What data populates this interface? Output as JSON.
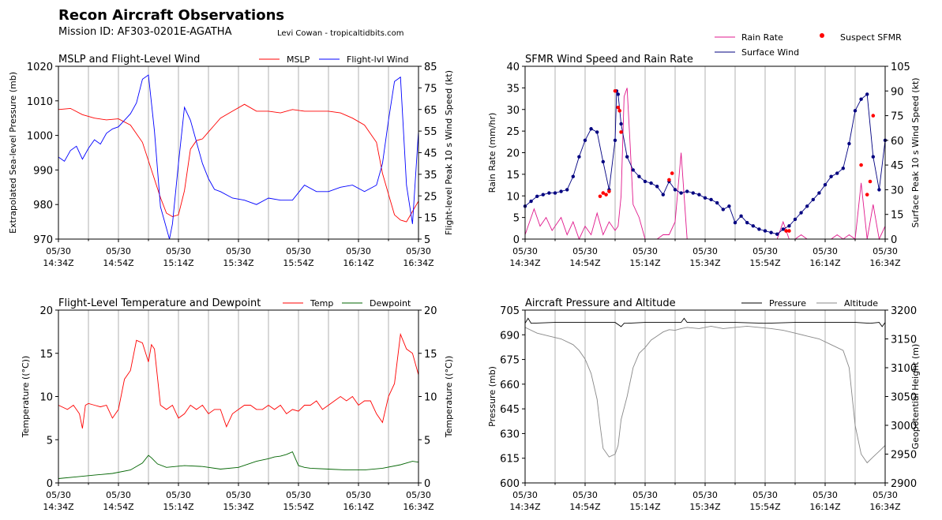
{
  "header": {
    "title": "Recon Aircraft Observations",
    "mission": "Mission ID: AF303-0201E-AGATHA",
    "credit": "Levi Cowan - tropicaltidbits.com"
  },
  "colors": {
    "mslp": "#ff0000",
    "wind": "#0000ff",
    "rain": "#e0188c",
    "sfmr": "#000080",
    "suspect": "#ff0000",
    "temp": "#ff0000",
    "dew": "#006400",
    "pressure": "#000000",
    "altitude": "#888888",
    "grid": "#aaaaaa"
  },
  "time_ticks": [
    "05/30\n14:34Z",
    "05/30\n14:54Z",
    "05/30\n15:14Z",
    "05/30\n15:34Z",
    "05/30\n15:54Z",
    "05/30\n16:14Z",
    "05/30\n16:34Z"
  ],
  "chart_data": [
    {
      "type": "line",
      "title": "MSLP and Flight-Level Wind",
      "ylabel": "Extrapolated Sea-level Pressure (mb)",
      "ylabel_right": "Flight-level Peak 10 s Wind Speed (kt)",
      "x_range_minutes": [
        0,
        120
      ],
      "ylim": [
        970,
        1020
      ],
      "yticks": [
        970,
        980,
        990,
        1000,
        1010,
        1020
      ],
      "ylim_right": [
        5,
        85
      ],
      "yticks_right": [
        5,
        15,
        25,
        35,
        45,
        55,
        65,
        75,
        85
      ],
      "legend": [
        "MSLP",
        "Flight-lvl Wind"
      ],
      "series": [
        {
          "name": "MSLP",
          "axis": "left",
          "color": "#ff0000",
          "x": [
            0,
            4,
            8,
            12,
            16,
            20,
            24,
            28,
            31,
            34,
            36,
            38,
            40,
            42,
            44,
            46,
            48,
            50,
            52,
            54,
            58,
            62,
            66,
            70,
            74,
            78,
            82,
            86,
            90,
            94,
            98,
            102,
            106,
            108,
            110,
            112,
            114,
            116,
            118,
            120
          ],
          "y": [
            1007.5,
            1007.8,
            1006,
            1005,
            1004.5,
            1004.8,
            1003,
            998,
            990,
            982,
            977.5,
            976.5,
            977,
            984,
            996,
            998.5,
            999,
            1001,
            1003,
            1005,
            1007,
            1009,
            1007,
            1007,
            1006.5,
            1007.5,
            1007,
            1007,
            1007,
            1006.5,
            1005,
            1003,
            998,
            989,
            983,
            977,
            975.5,
            975,
            978,
            981
          ]
        },
        {
          "name": "Flight-lvl Wind",
          "axis": "right",
          "color": "#0000ff",
          "x": [
            0,
            2,
            4,
            6,
            8,
            10,
            12,
            14,
            16,
            18,
            20,
            22,
            24,
            26,
            28,
            30,
            32,
            34,
            36,
            37,
            38,
            40,
            42,
            44,
            46,
            48,
            50,
            52,
            54,
            58,
            62,
            66,
            70,
            74,
            78,
            82,
            86,
            90,
            94,
            98,
            102,
            106,
            108,
            110,
            112,
            114,
            116,
            118,
            120
          ],
          "y": [
            43,
            41,
            46,
            48,
            42,
            47,
            51,
            49,
            54,
            56,
            57,
            60,
            63,
            68,
            79,
            81,
            55,
            20,
            10,
            5,
            12,
            40,
            66,
            60,
            50,
            40,
            33,
            28,
            27,
            24,
            23,
            21,
            24,
            23,
            23,
            30,
            27,
            27,
            29,
            30,
            27,
            30,
            40,
            60,
            78,
            80,
            30,
            12,
            55
          ]
        }
      ]
    },
    {
      "type": "line",
      "title": "SFMR Wind Speed and Rain Rate",
      "ylabel": "Rain Rate (mm/hr)",
      "ylabel_right": "Surface Peak 10 s Wind Speed (kt)",
      "x_range_minutes": [
        0,
        120
      ],
      "ylim": [
        0,
        40
      ],
      "yticks": [
        0,
        5,
        10,
        15,
        20,
        25,
        30,
        35,
        40
      ],
      "ylim_right": [
        0,
        105
      ],
      "yticks_right": [
        0,
        15,
        30,
        45,
        60,
        75,
        90,
        105
      ],
      "legend": [
        "Rain Rate",
        "Surface Wind",
        "Suspect SFMR"
      ],
      "series": [
        {
          "name": "Rain Rate",
          "axis": "left",
          "color": "#e0188c",
          "x": [
            0,
            3,
            5,
            7,
            9,
            12,
            14,
            16,
            18,
            20,
            22,
            24,
            26,
            28,
            30,
            31,
            32,
            33,
            34,
            35,
            36,
            38,
            40,
            42,
            44,
            46,
            48,
            50,
            52,
            54,
            56,
            58,
            60,
            62,
            64,
            66,
            68,
            70,
            72,
            74,
            76,
            78,
            80,
            82,
            84,
            86,
            88,
            90,
            92,
            94,
            96,
            98,
            100,
            102,
            104,
            106,
            108,
            110,
            112,
            114,
            116,
            118,
            120
          ],
          "y": [
            1,
            7,
            3,
            5,
            2,
            5,
            1,
            4,
            0,
            3,
            1,
            6,
            1,
            4,
            2,
            3,
            10,
            33,
            35,
            22,
            8,
            5,
            0,
            0,
            0,
            1,
            1,
            4,
            20,
            0,
            0,
            0,
            0,
            0,
            0,
            0,
            0,
            0,
            0,
            0,
            0,
            0,
            0,
            0,
            0,
            4,
            0,
            0,
            1,
            0,
            0,
            0,
            0,
            0,
            1,
            0,
            1,
            0,
            13,
            0,
            8,
            0,
            3
          ]
        },
        {
          "name": "Surface Wind",
          "axis": "right",
          "color": "#000080",
          "x": [
            0,
            2,
            4,
            6,
            8,
            10,
            12,
            14,
            16,
            18,
            20,
            22,
            24,
            26,
            28,
            30,
            30.5,
            31,
            32,
            34,
            36,
            38,
            40,
            42,
            44,
            46,
            48,
            50,
            52,
            54,
            56,
            58,
            60,
            62,
            64,
            66,
            68,
            70,
            72,
            74,
            76,
            78,
            80,
            82,
            84,
            86,
            88,
            90,
            92,
            94,
            96,
            98,
            100,
            102,
            104,
            106,
            108,
            110,
            112,
            114,
            116,
            118,
            120
          ],
          "y": [
            20,
            23,
            26,
            27,
            28,
            28,
            29,
            30,
            38,
            50,
            60,
            67,
            65,
            47,
            30,
            60,
            90,
            88,
            70,
            50,
            42,
            38,
            35,
            34,
            32,
            27,
            35,
            30,
            28,
            29,
            28,
            27,
            25,
            24,
            22,
            18,
            20,
            10,
            14,
            10,
            8,
            6,
            5,
            4,
            3,
            6,
            8,
            12,
            16,
            20,
            24,
            28,
            33,
            38,
            40,
            43,
            58,
            78,
            85,
            88,
            50,
            30,
            60
          ]
        },
        {
          "name": "Suspect SFMR",
          "axis": "right",
          "color": "#ff0000",
          "marker": "dot",
          "x": [
            25,
            26,
            27,
            28,
            30,
            31,
            31.5,
            32,
            48,
            49,
            87,
            88,
            112,
            114,
            115,
            116
          ],
          "y": [
            26,
            28,
            27,
            29,
            90,
            80,
            78,
            65,
            36,
            40,
            5,
            5,
            45,
            27,
            35,
            75
          ]
        }
      ]
    },
    {
      "type": "line",
      "title": "Flight-Level Temperature and Dewpoint",
      "ylabel": "Temperature ($^\\circ C$)",
      "ylabel_right": "Temperature ($^\\circ C$)",
      "x_range_minutes": [
        0,
        120
      ],
      "ylim": [
        0,
        20
      ],
      "yticks": [
        0,
        5,
        10,
        15,
        20
      ],
      "legend": [
        "Temp",
        "Dewpoint"
      ],
      "series": [
        {
          "name": "Temp",
          "color": "#ff0000",
          "x": [
            0,
            3,
            5,
            7,
            8,
            9,
            10,
            12,
            14,
            16,
            18,
            20,
            22,
            24,
            26,
            28,
            30,
            31,
            32,
            34,
            36,
            38,
            40,
            42,
            44,
            46,
            48,
            50,
            52,
            54,
            56,
            58,
            60,
            62,
            64,
            66,
            68,
            70,
            72,
            74,
            76,
            78,
            80,
            82,
            84,
            86,
            88,
            90,
            92,
            94,
            96,
            98,
            100,
            102,
            104,
            106,
            108,
            110,
            112,
            114,
            116,
            118,
            120
          ],
          "y": [
            9,
            8.5,
            9,
            8,
            6.3,
            9,
            9.2,
            9,
            8.8,
            9,
            7.5,
            8.5,
            12,
            13,
            16.5,
            16.2,
            14,
            16,
            15.5,
            9,
            8.5,
            9,
            7.5,
            8,
            9,
            8.5,
            9,
            8,
            8.5,
            8.5,
            6.5,
            8,
            8.5,
            9,
            9,
            8.5,
            8.5,
            9,
            8.5,
            9,
            8,
            8.5,
            8.3,
            9,
            9,
            9.5,
            8.5,
            9,
            9.5,
            10,
            9.5,
            10,
            9,
            9.5,
            9.5,
            8,
            7,
            10,
            11.5,
            17.2,
            15.5,
            15,
            12.5
          ]
        },
        {
          "name": "Dewpoint",
          "color": "#006400",
          "x": [
            0,
            6,
            12,
            18,
            24,
            28,
            30,
            31,
            33,
            36,
            42,
            48,
            54,
            60,
            66,
            70,
            72,
            74,
            76,
            78,
            80,
            82,
            84,
            90,
            96,
            102,
            108,
            114,
            118,
            120
          ],
          "y": [
            0.5,
            0.7,
            0.9,
            1.1,
            1.5,
            2.3,
            3.2,
            2.9,
            2.2,
            1.8,
            2,
            1.9,
            1.6,
            1.8,
            2.5,
            2.8,
            3,
            3.1,
            3.3,
            3.6,
            2,
            1.8,
            1.7,
            1.6,
            1.5,
            1.5,
            1.7,
            2.1,
            2.5,
            2.4
          ]
        }
      ]
    },
    {
      "type": "line",
      "title": "Aircraft Pressure and Altitude",
      "ylabel": "Pressure (mb)",
      "ylabel_right": "Geopotential Height (m)",
      "x_range_minutes": [
        0,
        120
      ],
      "ylim": [
        600,
        705
      ],
      "yticks": [
        600,
        615,
        630,
        645,
        660,
        675,
        690,
        705
      ],
      "ylim_right": [
        2900,
        3200
      ],
      "yticks_right": [
        2900,
        2950,
        3000,
        3050,
        3100,
        3150,
        3200
      ],
      "legend": [
        "Pressure",
        "Altitude"
      ],
      "series": [
        {
          "name": "Pressure",
          "axis": "left",
          "color": "#000000",
          "x": [
            0,
            1,
            2,
            10,
            20,
            30,
            32,
            33,
            34,
            40,
            50,
            52,
            53,
            54,
            60,
            70,
            80,
            90,
            100,
            110,
            115,
            118,
            119,
            120
          ],
          "y": [
            697,
            700,
            697,
            697.5,
            697.5,
            697.5,
            695,
            697,
            697,
            697.5,
            697.5,
            697.5,
            700,
            697.5,
            697.5,
            697.5,
            697,
            697.5,
            697.5,
            697.5,
            697,
            697.5,
            695,
            697.5
          ]
        },
        {
          "name": "Altitude",
          "axis": "right",
          "color": "#888888",
          "x": [
            0,
            4,
            8,
            12,
            16,
            18,
            20,
            22,
            24,
            25,
            26,
            28,
            30,
            31,
            32,
            34,
            36,
            38,
            40,
            42,
            44,
            46,
            48,
            50,
            52,
            54,
            58,
            62,
            66,
            70,
            74,
            78,
            82,
            86,
            90,
            94,
            98,
            102,
            106,
            108,
            110,
            112,
            114,
            116,
            118,
            120
          ],
          "y": [
            3170,
            3160,
            3155,
            3150,
            3140,
            3130,
            3115,
            3090,
            3045,
            3000,
            2960,
            2945,
            2950,
            2965,
            3010,
            3050,
            3100,
            3125,
            3135,
            3148,
            3155,
            3162,
            3166,
            3165,
            3168,
            3170,
            3168,
            3172,
            3168,
            3170,
            3172,
            3170,
            3168,
            3165,
            3160,
            3155,
            3150,
            3140,
            3130,
            3100,
            3000,
            2950,
            2935,
            2945,
            2955,
            2965
          ]
        }
      ]
    }
  ]
}
